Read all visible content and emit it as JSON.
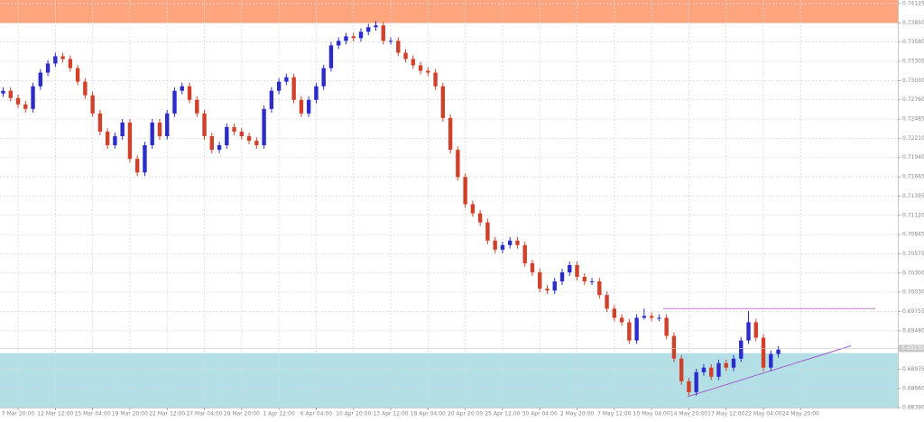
{
  "chart_data": {
    "type": "candlestick",
    "bull_color": "#2c2ccc",
    "bear_color": "#d0402a",
    "grid": true,
    "ylim": [
      0.6839,
      0.74177
    ],
    "yticks": [
      {
        "value": 0.74125,
        "label": "0.74125"
      },
      {
        "value": 0.7385,
        "label": "0.73850"
      },
      {
        "value": 0.7358,
        "label": "0.73580"
      },
      {
        "value": 0.73305,
        "label": "0.73305"
      },
      {
        "value": 0.7303,
        "label": "0.73030"
      },
      {
        "value": 0.7276,
        "label": "0.72760"
      },
      {
        "value": 0.72485,
        "label": "0.72485"
      },
      {
        "value": 0.7221,
        "label": "0.72210"
      },
      {
        "value": 0.7194,
        "label": "0.71940"
      },
      {
        "value": 0.71665,
        "label": "0.71665"
      },
      {
        "value": 0.71395,
        "label": "0.71395"
      },
      {
        "value": 0.7112,
        "label": "0.71120"
      },
      {
        "value": 0.70845,
        "label": "0.70845"
      },
      {
        "value": 0.70575,
        "label": "0.70575"
      },
      {
        "value": 0.703,
        "label": "0.70300"
      },
      {
        "value": 0.7003,
        "label": "0.70030"
      },
      {
        "value": 0.69755,
        "label": "0.69755"
      },
      {
        "value": 0.6948,
        "label": "0.69480"
      },
      {
        "value": 0.68935,
        "label": "0.68935"
      },
      {
        "value": 0.6866,
        "label": "0.68660"
      },
      {
        "value": 0.6839,
        "label": "0.68390"
      }
    ],
    "current_price": {
      "value": 0.6923,
      "label": "0.69230"
    },
    "zones": [
      {
        "from": 0.7385,
        "to": 0.74177,
        "color": "#ffa57e"
      },
      {
        "from": 0.6839,
        "to": 0.69163,
        "color": "#b2e0e6"
      }
    ],
    "resistance": {
      "value": 0.69795,
      "color": "#c47ac4"
    },
    "trendline": {
      "values": [
        0.68545,
        0.69267
      ],
      "color": "#a25fc8"
    },
    "categories": [
      null,
      null,
      "7 Mar 20:00",
      null,
      null,
      null,
      null,
      "12 Mar 12:00",
      null,
      null,
      null,
      null,
      "15 Mar 04:00",
      null,
      null,
      null,
      null,
      "19 Mar 20:00",
      null,
      null,
      null,
      null,
      "22 Mar 12:00",
      null,
      null,
      null,
      null,
      "27 Mar 04:00",
      null,
      null,
      null,
      null,
      "29 Mar 20:00",
      null,
      null,
      null,
      null,
      "1 Apr 12:00",
      null,
      null,
      null,
      null,
      "6 Apr 04:00",
      null,
      null,
      null,
      null,
      "10 Apr 20:00",
      null,
      null,
      null,
      null,
      "13 Apr 12:00",
      null,
      null,
      null,
      null,
      "18 Apr 04:00",
      null,
      null,
      null,
      null,
      "20 Apr 20:00",
      null,
      null,
      null,
      null,
      "25 Apr 12:00",
      null,
      null,
      null,
      null,
      "30 Apr 04:00",
      null,
      null,
      null,
      null,
      "2 May 20:00",
      null,
      null,
      null,
      null,
      "7 May 12:00",
      null,
      null,
      null,
      null,
      "10 May 04:00",
      null,
      null,
      null,
      null,
      "14 May 20:00",
      null,
      null,
      null,
      null,
      "17 May 12:00",
      null,
      null,
      null,
      null,
      "22 May 04:00",
      null,
      null,
      null,
      null,
      "24 May 20:00"
    ],
    "ohlc": [
      [
        0.7285,
        0.72938,
        0.728,
        0.72888
      ],
      [
        0.72888,
        0.72938,
        0.72735,
        0.72785
      ],
      [
        0.72785,
        0.72835,
        0.72645,
        0.72695
      ],
      [
        0.72695,
        0.72745,
        0.7258,
        0.7263
      ],
      [
        0.7263,
        0.73002,
        0.7258,
        0.72952
      ],
      [
        0.72952,
        0.73196,
        0.72902,
        0.73146
      ],
      [
        0.73146,
        0.73325,
        0.73096,
        0.73275
      ],
      [
        0.73275,
        0.73428,
        0.73225,
        0.73378
      ],
      [
        0.73378,
        0.73428,
        0.73289,
        0.73339
      ],
      [
        0.73339,
        0.73389,
        0.7316,
        0.7321
      ],
      [
        0.7321,
        0.7326,
        0.72967,
        0.73017
      ],
      [
        0.73017,
        0.73067,
        0.72774,
        0.72824
      ],
      [
        0.72824,
        0.72874,
        0.72516,
        0.72566
      ],
      [
        0.72566,
        0.72616,
        0.72258,
        0.72308
      ],
      [
        0.72308,
        0.72358,
        0.72065,
        0.72115
      ],
      [
        0.72115,
        0.72293,
        0.72065,
        0.72243
      ],
      [
        0.72243,
        0.72487,
        0.72193,
        0.72437
      ],
      [
        0.72437,
        0.72487,
        0.71871,
        0.71921
      ],
      [
        0.71921,
        0.71971,
        0.71678,
        0.71728
      ],
      [
        0.71728,
        0.72165,
        0.71678,
        0.72115
      ],
      [
        0.72115,
        0.72487,
        0.72065,
        0.72437
      ],
      [
        0.72437,
        0.72487,
        0.72193,
        0.72243
      ],
      [
        0.72243,
        0.72616,
        0.72193,
        0.72566
      ],
      [
        0.72566,
        0.72938,
        0.72516,
        0.72888
      ],
      [
        0.72888,
        0.73002,
        0.72838,
        0.72952
      ],
      [
        0.72952,
        0.73002,
        0.72709,
        0.72759
      ],
      [
        0.72759,
        0.72809,
        0.72516,
        0.72566
      ],
      [
        0.72566,
        0.72616,
        0.72193,
        0.72243
      ],
      [
        0.72243,
        0.72293,
        0.72,
        0.7205
      ],
      [
        0.7205,
        0.72165,
        0.72,
        0.72115
      ],
      [
        0.72115,
        0.72422,
        0.72065,
        0.72372
      ],
      [
        0.72372,
        0.72422,
        0.72258,
        0.72308
      ],
      [
        0.72308,
        0.72358,
        0.72193,
        0.72243
      ],
      [
        0.72243,
        0.72293,
        0.72129,
        0.72179
      ],
      [
        0.72179,
        0.72229,
        0.72065,
        0.72115
      ],
      [
        0.72115,
        0.7268,
        0.72065,
        0.7263
      ],
      [
        0.7263,
        0.72938,
        0.7258,
        0.72888
      ],
      [
        0.72888,
        0.73067,
        0.72838,
        0.73017
      ],
      [
        0.73017,
        0.73131,
        0.72967,
        0.73081
      ],
      [
        0.73081,
        0.73131,
        0.72709,
        0.72759
      ],
      [
        0.72759,
        0.72809,
        0.72516,
        0.72566
      ],
      [
        0.72566,
        0.72809,
        0.72516,
        0.72759
      ],
      [
        0.72759,
        0.73002,
        0.72709,
        0.72952
      ],
      [
        0.72952,
        0.7326,
        0.72902,
        0.7321
      ],
      [
        0.7321,
        0.73582,
        0.7316,
        0.73532
      ],
      [
        0.73532,
        0.73647,
        0.73482,
        0.73597
      ],
      [
        0.73597,
        0.73711,
        0.73547,
        0.73661
      ],
      [
        0.73661,
        0.73711,
        0.73586,
        0.73636
      ],
      [
        0.73636,
        0.73776,
        0.73586,
        0.73726
      ],
      [
        0.73726,
        0.7384,
        0.73676,
        0.7379
      ],
      [
        0.7379,
        0.7388,
        0.7374,
        0.73816
      ],
      [
        0.73816,
        0.73866,
        0.73547,
        0.73597
      ],
      [
        0.73597,
        0.73647,
        0.73547,
        0.73597
      ],
      [
        0.73597,
        0.73647,
        0.73379,
        0.73429
      ],
      [
        0.73429,
        0.73479,
        0.73289,
        0.73339
      ],
      [
        0.73339,
        0.73389,
        0.73199,
        0.73249
      ],
      [
        0.73249,
        0.73299,
        0.73122,
        0.73172
      ],
      [
        0.73172,
        0.73222,
        0.73096,
        0.73146
      ],
      [
        0.73146,
        0.73196,
        0.72902,
        0.72952
      ],
      [
        0.72952,
        0.73002,
        0.72451,
        0.72501
      ],
      [
        0.72501,
        0.72551,
        0.72,
        0.7205
      ],
      [
        0.7205,
        0.721,
        0.71613,
        0.71663
      ],
      [
        0.71663,
        0.71713,
        0.71227,
        0.71277
      ],
      [
        0.71277,
        0.71327,
        0.71098,
        0.71148
      ],
      [
        0.71148,
        0.71198,
        0.70969,
        0.71019
      ],
      [
        0.71019,
        0.71069,
        0.70711,
        0.70761
      ],
      [
        0.70761,
        0.70811,
        0.70582,
        0.70632
      ],
      [
        0.70632,
        0.70747,
        0.70582,
        0.70697
      ],
      [
        0.70697,
        0.70811,
        0.70647,
        0.70761
      ],
      [
        0.70761,
        0.70811,
        0.70647,
        0.70697
      ],
      [
        0.70697,
        0.70747,
        0.70389,
        0.70439
      ],
      [
        0.70439,
        0.70489,
        0.7026,
        0.7031
      ],
      [
        0.7031,
        0.7036,
        0.70028,
        0.70078
      ],
      [
        0.70078,
        0.70128,
        0.70002,
        0.70052
      ],
      [
        0.70052,
        0.70231,
        0.70002,
        0.70181
      ],
      [
        0.70181,
        0.7036,
        0.70131,
        0.7031
      ],
      [
        0.7031,
        0.70463,
        0.7026,
        0.70413
      ],
      [
        0.70413,
        0.70463,
        0.70196,
        0.70246
      ],
      [
        0.70246,
        0.70296,
        0.70131,
        0.70181
      ],
      [
        0.70181,
        0.70231,
        0.70131,
        0.70181
      ],
      [
        0.70181,
        0.70231,
        0.69938,
        0.69988
      ],
      [
        0.69988,
        0.70038,
        0.69744,
        0.69794
      ],
      [
        0.69794,
        0.69844,
        0.69615,
        0.69665
      ],
      [
        0.69665,
        0.69715,
        0.69551,
        0.69601
      ],
      [
        0.69601,
        0.69651,
        0.69293,
        0.69343
      ],
      [
        0.69343,
        0.69715,
        0.69293,
        0.69665
      ],
      [
        0.69665,
        0.69795,
        0.69641,
        0.69691
      ],
      [
        0.69691,
        0.69741,
        0.69615,
        0.69665
      ],
      [
        0.69665,
        0.69715,
        0.69615,
        0.69665
      ],
      [
        0.69665,
        0.69715,
        0.69358,
        0.69408
      ],
      [
        0.69408,
        0.69458,
        0.69035,
        0.69085
      ],
      [
        0.69085,
        0.69135,
        0.68713,
        0.68763
      ],
      [
        0.68763,
        0.68813,
        0.68559,
        0.68609
      ],
      [
        0.68609,
        0.68942,
        0.68559,
        0.68892
      ],
      [
        0.68892,
        0.69007,
        0.68842,
        0.68957
      ],
      [
        0.68957,
        0.69007,
        0.68778,
        0.68828
      ],
      [
        0.68828,
        0.69071,
        0.68778,
        0.69021
      ],
      [
        0.69021,
        0.69071,
        0.68907,
        0.68957
      ],
      [
        0.68957,
        0.69135,
        0.68907,
        0.69085
      ],
      [
        0.69085,
        0.69393,
        0.69035,
        0.69343
      ],
      [
        0.69343,
        0.6976,
        0.69293,
        0.69601
      ],
      [
        0.69601,
        0.69651,
        0.69332,
        0.69382
      ],
      [
        0.69382,
        0.69432,
        0.68907,
        0.68957
      ],
      [
        0.68957,
        0.692,
        0.68907,
        0.6915
      ],
      [
        0.6915,
        0.69264,
        0.691,
        0.69214
      ],
      null,
      null,
      null
    ]
  }
}
